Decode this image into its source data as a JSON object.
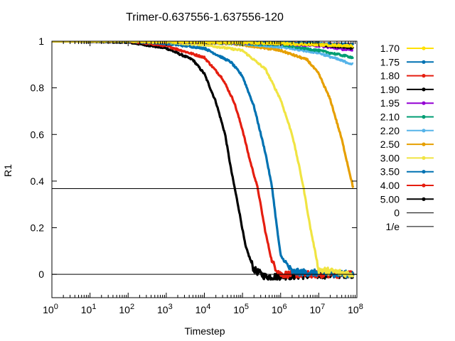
{
  "chart_data": {
    "type": "line",
    "title": "Trimer-0.637556-1.637556-120",
    "xlabel": "Timestep",
    "ylabel": "R1",
    "xscale": "log",
    "xlim": [
      1,
      100000000
    ],
    "ylim": [
      -0.1,
      1.0
    ],
    "x_ticks": [
      {
        "value": 1,
        "base": "10",
        "exp": "0"
      },
      {
        "value": 10,
        "base": "10",
        "exp": "1"
      },
      {
        "value": 100,
        "base": "10",
        "exp": "2"
      },
      {
        "value": 1000,
        "base": "10",
        "exp": "3"
      },
      {
        "value": 10000,
        "base": "10",
        "exp": "4"
      },
      {
        "value": 100000,
        "base": "10",
        "exp": "5"
      },
      {
        "value": 1000000,
        "base": "10",
        "exp": "6"
      },
      {
        "value": 10000000,
        "base": "10",
        "exp": "7"
      },
      {
        "value": 100000000,
        "base": "10",
        "exp": "8"
      }
    ],
    "y_ticks": [
      {
        "value": 0,
        "label": "0"
      },
      {
        "value": 0.2,
        "label": "0.2"
      },
      {
        "value": 0.4,
        "label": "0.4"
      },
      {
        "value": 0.6,
        "label": "0.6"
      },
      {
        "value": 0.8,
        "label": "0.8"
      },
      {
        "value": 1,
        "label": "1"
      }
    ],
    "grid": false,
    "legend_position": "right",
    "series": [
      {
        "name": "1.70",
        "color": "#ffe100",
        "x": [
          1,
          100,
          10000,
          1000000,
          10000000,
          80000000
        ],
        "y": [
          1.0,
          1.0,
          0.995,
          0.99,
          0.985,
          0.98
        ]
      },
      {
        "name": "1.75",
        "color": "#0072b2",
        "x": [
          1,
          100,
          10000,
          1000000,
          10000000,
          80000000
        ],
        "y": [
          1.0,
          1.0,
          0.997,
          0.993,
          0.99,
          0.985
        ]
      },
      {
        "name": "1.80",
        "color": "#e51e10",
        "x": [
          1,
          100,
          10000,
          1000000,
          10000000,
          80000000
        ],
        "y": [
          1.0,
          1.0,
          0.997,
          0.994,
          0.99,
          0.985
        ]
      },
      {
        "name": "1.90",
        "color": "#000000",
        "x": [
          1,
          100,
          10000,
          1000000,
          10000000,
          80000000
        ],
        "y": [
          1.0,
          1.0,
          0.997,
          0.993,
          0.985,
          0.97
        ]
      },
      {
        "name": "1.95",
        "color": "#9400d3",
        "x": [
          1,
          100,
          10000,
          1000000,
          10000000,
          80000000
        ],
        "y": [
          1.0,
          1.0,
          0.996,
          0.99,
          0.98,
          0.96
        ]
      },
      {
        "name": "2.10",
        "color": "#009e73",
        "x": [
          1,
          100,
          10000,
          1000000,
          10000000,
          80000000
        ],
        "y": [
          1.0,
          1.0,
          0.995,
          0.985,
          0.96,
          0.93
        ]
      },
      {
        "name": "2.20",
        "color": "#56b4e9",
        "x": [
          1,
          100,
          10000,
          100000,
          1000000,
          10000000,
          80000000
        ],
        "y": [
          1.0,
          1.0,
          0.995,
          0.99,
          0.975,
          0.95,
          0.9
        ]
      },
      {
        "name": "2.50",
        "color": "#e69f00",
        "x": [
          1,
          100,
          10000,
          100000,
          1000000,
          5000000,
          10000000,
          20000000,
          40000000,
          80000000
        ],
        "y": [
          1.0,
          1.0,
          0.995,
          0.985,
          0.96,
          0.92,
          0.86,
          0.75,
          0.58,
          0.37
        ]
      },
      {
        "name": "3.00",
        "color": "#f0e442",
        "x": [
          1,
          100,
          1000,
          10000,
          100000,
          400000,
          1000000,
          2000000,
          3000000,
          4000000,
          6000000,
          10000000,
          80000000
        ],
        "y": [
          1.0,
          1.0,
          0.995,
          0.985,
          0.96,
          0.88,
          0.75,
          0.6,
          0.47,
          0.37,
          0.2,
          0.02,
          0.0
        ]
      },
      {
        "name": "3.50",
        "color": "#0072b2",
        "x": [
          1,
          100,
          1000,
          10000,
          50000,
          100000,
          200000,
          400000,
          600000,
          800000,
          1000000,
          2000000,
          80000000
        ],
        "y": [
          1.0,
          1.0,
          0.99,
          0.97,
          0.91,
          0.85,
          0.72,
          0.52,
          0.37,
          0.2,
          0.08,
          0.01,
          0.0
        ]
      },
      {
        "name": "4.00",
        "color": "#e51e10",
        "x": [
          1,
          100,
          1000,
          10000,
          30000,
          60000,
          100000,
          150000,
          250000,
          400000,
          600000,
          1000000,
          80000000
        ],
        "y": [
          1.0,
          1.0,
          0.98,
          0.93,
          0.84,
          0.74,
          0.62,
          0.5,
          0.37,
          0.18,
          0.05,
          0.0,
          0.0
        ]
      },
      {
        "name": "5.00",
        "color": "#000000",
        "x": [
          1,
          100,
          1000,
          5000,
          10000,
          20000,
          35000,
          50000,
          80000,
          120000,
          200000,
          400000,
          80000000
        ],
        "y": [
          1.0,
          0.995,
          0.97,
          0.92,
          0.86,
          0.74,
          0.6,
          0.45,
          0.28,
          0.12,
          0.02,
          -0.01,
          0.0
        ]
      }
    ],
    "reference_lines": [
      {
        "name": "0",
        "y": 0,
        "color": "#000000"
      },
      {
        "name": "1/e",
        "y": 0.3679,
        "color": "#000000"
      }
    ]
  }
}
